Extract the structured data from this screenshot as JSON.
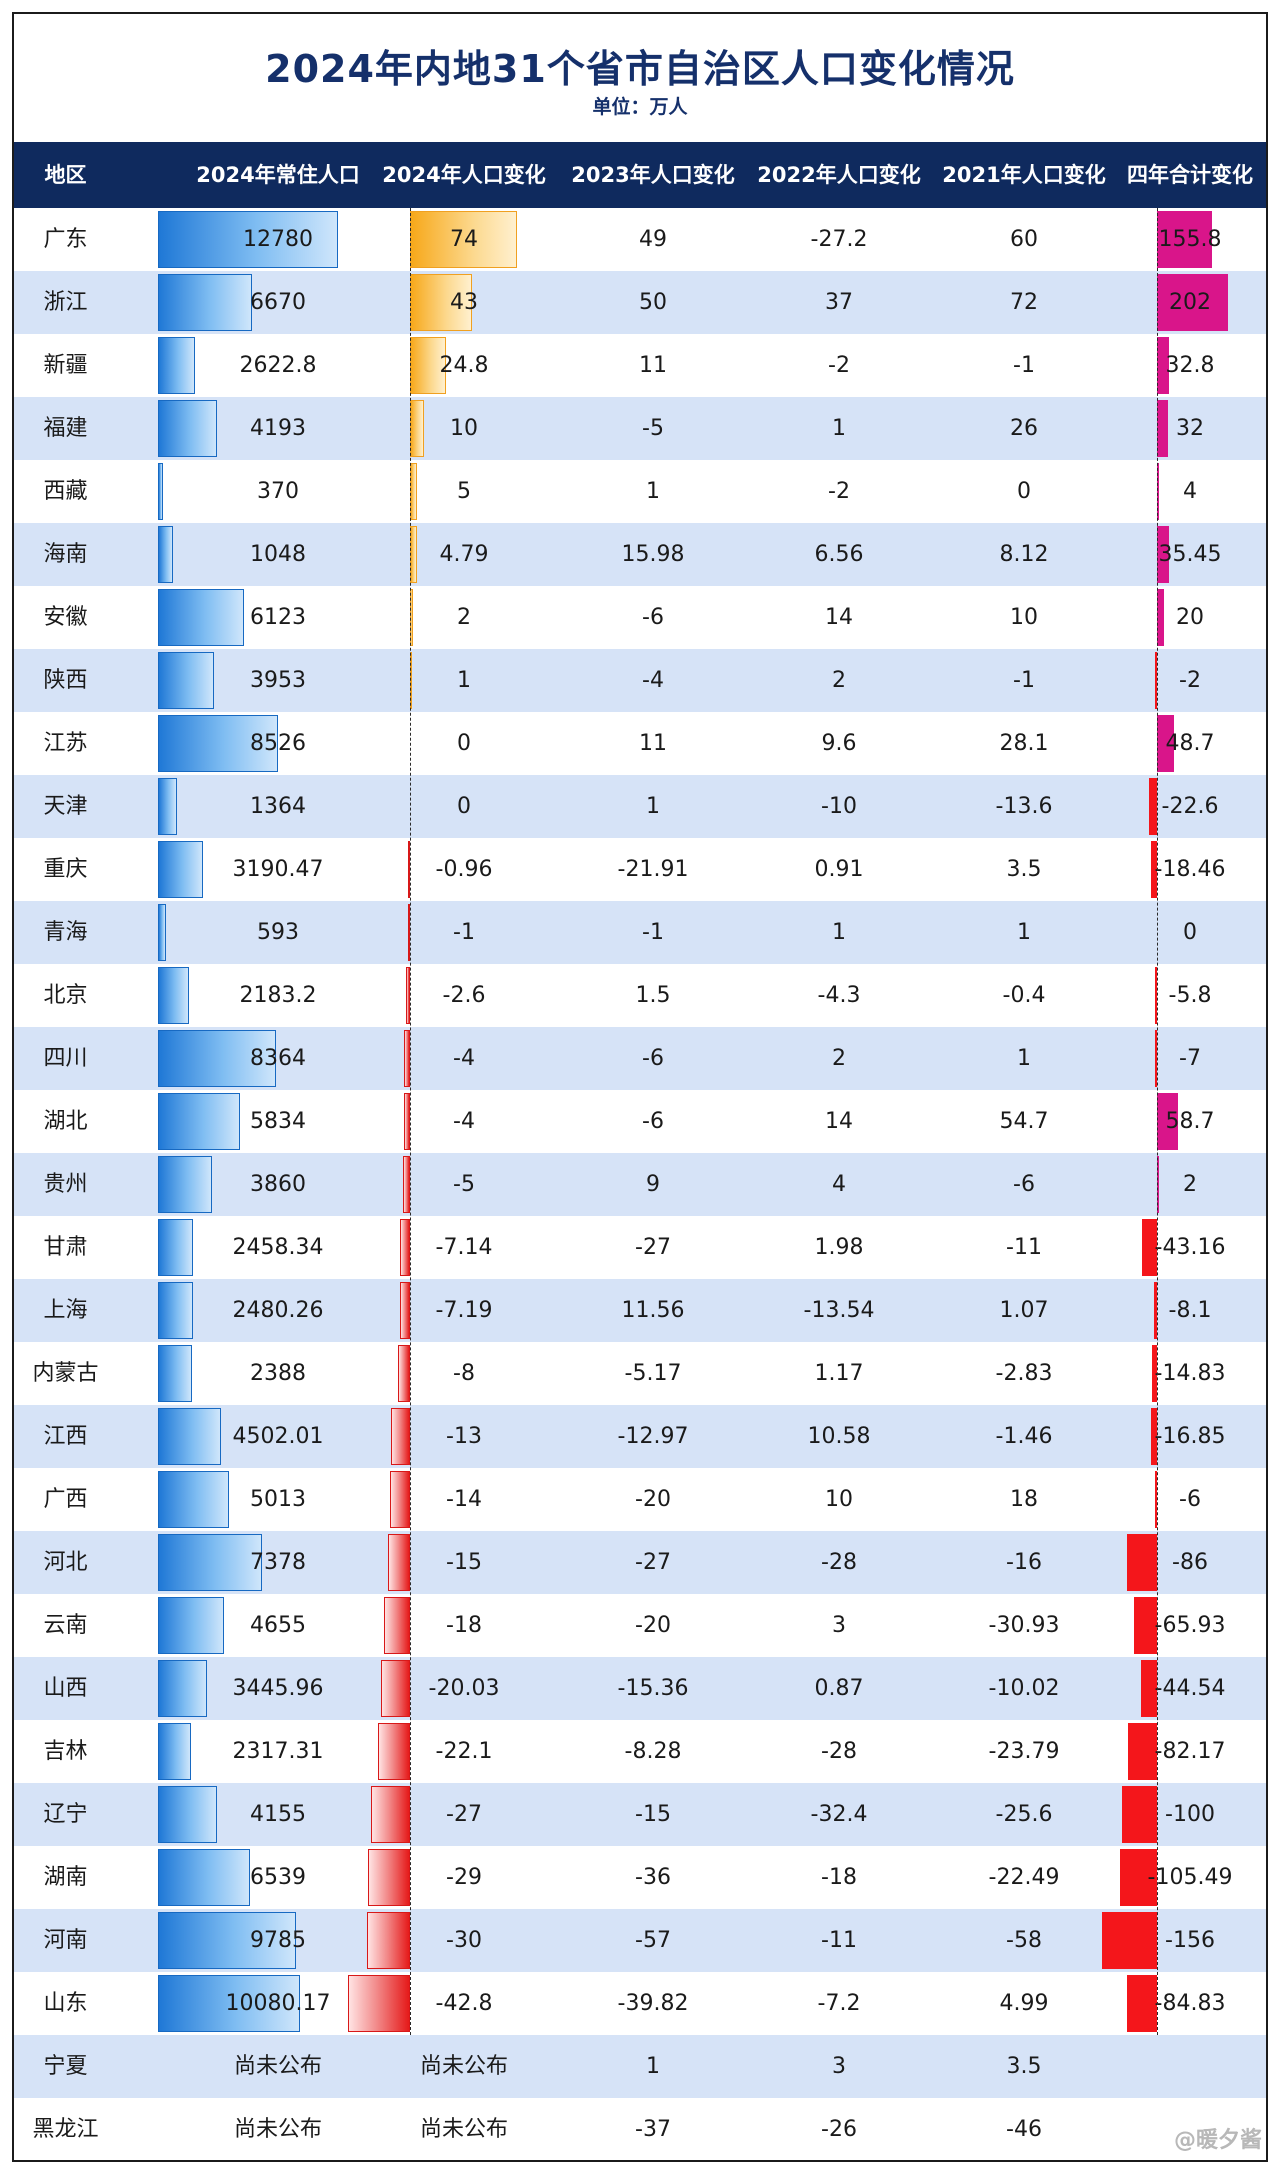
{
  "title": "2024年内地31个省市自治区人口变化情况",
  "subtitle": "单位：万人",
  "watermark": "@暖夕酱",
  "columns": [
    "地区",
    "2024年常住人口",
    "2024年人口变化",
    "2023年人口变化",
    "2022年人口变化",
    "2021年人口变化",
    "四年合计变化"
  ],
  "colors": {
    "header_bg": "#0f2a5e",
    "title": "#15306b",
    "pop_bar": "#1f78d6",
    "pos_change": "#f7a81a",
    "neg_change": "#e51a1a",
    "total_pos": "#d9158a",
    "total_neg": "#f4161b",
    "alt_row": "#d6e3f7"
  },
  "chart_data": {
    "type": "table",
    "rows": [
      {
        "region": "广东",
        "pop": "12780",
        "c2024": "74",
        "c2023": "49",
        "c2022": "-27.2",
        "c2021": "60",
        "total": "155.8"
      },
      {
        "region": "浙江",
        "pop": "6670",
        "c2024": "43",
        "c2023": "50",
        "c2022": "37",
        "c2021": "72",
        "total": "202"
      },
      {
        "region": "新疆",
        "pop": "2622.8",
        "c2024": "24.8",
        "c2023": "11",
        "c2022": "-2",
        "c2021": "-1",
        "total": "32.8"
      },
      {
        "region": "福建",
        "pop": "4193",
        "c2024": "10",
        "c2023": "-5",
        "c2022": "1",
        "c2021": "26",
        "total": "32"
      },
      {
        "region": "西藏",
        "pop": "370",
        "c2024": "5",
        "c2023": "1",
        "c2022": "-2",
        "c2021": "0",
        "total": "4"
      },
      {
        "region": "海南",
        "pop": "1048",
        "c2024": "4.79",
        "c2023": "15.98",
        "c2022": "6.56",
        "c2021": "8.12",
        "total": "35.45"
      },
      {
        "region": "安徽",
        "pop": "6123",
        "c2024": "2",
        "c2023": "-6",
        "c2022": "14",
        "c2021": "10",
        "total": "20"
      },
      {
        "region": "陕西",
        "pop": "3953",
        "c2024": "1",
        "c2023": "-4",
        "c2022": "2",
        "c2021": "-1",
        "total": "-2"
      },
      {
        "region": "江苏",
        "pop": "8526",
        "c2024": "0",
        "c2023": "11",
        "c2022": "9.6",
        "c2021": "28.1",
        "total": "48.7"
      },
      {
        "region": "天津",
        "pop": "1364",
        "c2024": "0",
        "c2023": "1",
        "c2022": "-10",
        "c2021": "-13.6",
        "total": "-22.6"
      },
      {
        "region": "重庆",
        "pop": "3190.47",
        "c2024": "-0.96",
        "c2023": "-21.91",
        "c2022": "0.91",
        "c2021": "3.5",
        "total": "-18.46"
      },
      {
        "region": "青海",
        "pop": "593",
        "c2024": "-1",
        "c2023": "-1",
        "c2022": "1",
        "c2021": "1",
        "total": "0"
      },
      {
        "region": "北京",
        "pop": "2183.2",
        "c2024": "-2.6",
        "c2023": "1.5",
        "c2022": "-4.3",
        "c2021": "-0.4",
        "total": "-5.8"
      },
      {
        "region": "四川",
        "pop": "8364",
        "c2024": "-4",
        "c2023": "-6",
        "c2022": "2",
        "c2021": "1",
        "total": "-7"
      },
      {
        "region": "湖北",
        "pop": "5834",
        "c2024": "-4",
        "c2023": "-6",
        "c2022": "14",
        "c2021": "54.7",
        "total": "58.7"
      },
      {
        "region": "贵州",
        "pop": "3860",
        "c2024": "-5",
        "c2023": "9",
        "c2022": "4",
        "c2021": "-6",
        "total": "2"
      },
      {
        "region": "甘肃",
        "pop": "2458.34",
        "c2024": "-7.14",
        "c2023": "-27",
        "c2022": "1.98",
        "c2021": "-11",
        "total": "-43.16"
      },
      {
        "region": "上海",
        "pop": "2480.26",
        "c2024": "-7.19",
        "c2023": "11.56",
        "c2022": "-13.54",
        "c2021": "1.07",
        "total": "-8.1"
      },
      {
        "region": "内蒙古",
        "pop": "2388",
        "c2024": "-8",
        "c2023": "-5.17",
        "c2022": "1.17",
        "c2021": "-2.83",
        "total": "-14.83"
      },
      {
        "region": "江西",
        "pop": "4502.01",
        "c2024": "-13",
        "c2023": "-12.97",
        "c2022": "10.58",
        "c2021": "-1.46",
        "total": "-16.85"
      },
      {
        "region": "广西",
        "pop": "5013",
        "c2024": "-14",
        "c2023": "-20",
        "c2022": "10",
        "c2021": "18",
        "total": "-6"
      },
      {
        "region": "河北",
        "pop": "7378",
        "c2024": "-15",
        "c2023": "-27",
        "c2022": "-28",
        "c2021": "-16",
        "total": "-86"
      },
      {
        "region": "云南",
        "pop": "4655",
        "c2024": "-18",
        "c2023": "-20",
        "c2022": "3",
        "c2021": "-30.93",
        "total": "-65.93"
      },
      {
        "region": "山西",
        "pop": "3445.96",
        "c2024": "-20.03",
        "c2023": "-15.36",
        "c2022": "0.87",
        "c2021": "-10.02",
        "total": "-44.54"
      },
      {
        "region": "吉林",
        "pop": "2317.31",
        "c2024": "-22.1",
        "c2023": "-8.28",
        "c2022": "-28",
        "c2021": "-23.79",
        "total": "-82.17"
      },
      {
        "region": "辽宁",
        "pop": "4155",
        "c2024": "-27",
        "c2023": "-15",
        "c2022": "-32.4",
        "c2021": "-25.6",
        "total": "-100"
      },
      {
        "region": "湖南",
        "pop": "6539",
        "c2024": "-29",
        "c2023": "-36",
        "c2022": "-18",
        "c2021": "-22.49",
        "total": "-105.49"
      },
      {
        "region": "河南",
        "pop": "9785",
        "c2024": "-30",
        "c2023": "-57",
        "c2022": "-11",
        "c2021": "-58",
        "total": "-156"
      },
      {
        "region": "山东",
        "pop": "10080.17",
        "c2024": "-42.8",
        "c2023": "-39.82",
        "c2022": "-7.2",
        "c2021": "4.99",
        "total": "-84.83"
      },
      {
        "region": "宁夏",
        "pop": "尚未公布",
        "c2024": "尚未公布",
        "c2023": "1",
        "c2022": "3",
        "c2021": "3.5",
        "total": ""
      },
      {
        "region": "黑龙江",
        "pop": "尚未公布",
        "c2024": "尚未公布",
        "c2023": "-37",
        "c2022": "-26",
        "c2021": "-46",
        "total": ""
      }
    ]
  }
}
